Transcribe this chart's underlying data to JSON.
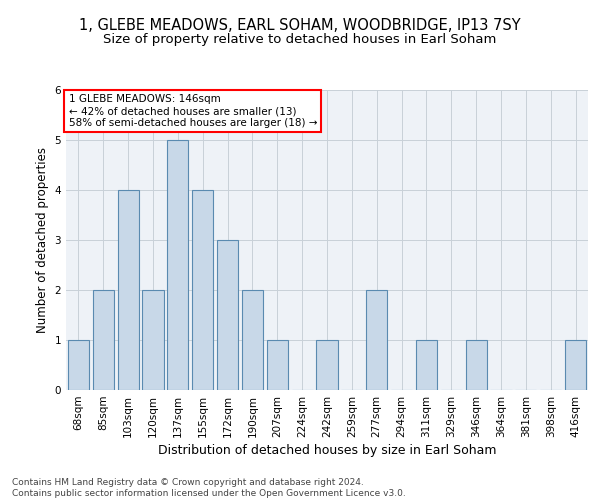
{
  "title": "1, GLEBE MEADOWS, EARL SOHAM, WOODBRIDGE, IP13 7SY",
  "subtitle": "Size of property relative to detached houses in Earl Soham",
  "xlabel": "Distribution of detached houses by size in Earl Soham",
  "ylabel": "Number of detached properties",
  "categories": [
    "68sqm",
    "85sqm",
    "103sqm",
    "120sqm",
    "137sqm",
    "155sqm",
    "172sqm",
    "190sqm",
    "207sqm",
    "224sqm",
    "242sqm",
    "259sqm",
    "277sqm",
    "294sqm",
    "311sqm",
    "329sqm",
    "346sqm",
    "364sqm",
    "381sqm",
    "398sqm",
    "416sqm"
  ],
  "values": [
    1,
    2,
    4,
    2,
    5,
    4,
    3,
    2,
    1,
    0,
    1,
    0,
    2,
    0,
    1,
    0,
    1,
    0,
    0,
    0,
    1
  ],
  "bar_color": "#c8d8e8",
  "bar_edge_color": "#5a8ab0",
  "ylim": [
    0,
    6
  ],
  "yticks": [
    0,
    1,
    2,
    3,
    4,
    5,
    6
  ],
  "annotation_text": "1 GLEBE MEADOWS: 146sqm\n← 42% of detached houses are smaller (13)\n58% of semi-detached houses are larger (18) →",
  "annotation_box_color": "white",
  "annotation_box_edge_color": "red",
  "footer_text": "Contains HM Land Registry data © Crown copyright and database right 2024.\nContains public sector information licensed under the Open Government Licence v3.0.",
  "bg_color": "#eef2f7",
  "grid_color": "#c8d0d8",
  "title_fontsize": 10.5,
  "subtitle_fontsize": 9.5,
  "xlabel_fontsize": 9,
  "ylabel_fontsize": 8.5,
  "tick_fontsize": 7.5,
  "footer_fontsize": 6.5,
  "annotation_fontsize": 7.5
}
